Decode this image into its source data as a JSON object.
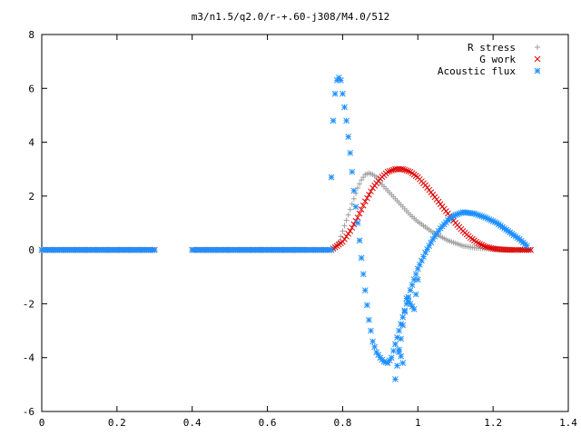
{
  "chart_data": {
    "type": "scatter",
    "title": "m3/n1.5/q2.0/r-+.60-j308/M4.0/512",
    "xlabel": "",
    "ylabel": "",
    "xlim": [
      0,
      1.4
    ],
    "ylim": [
      -6,
      8
    ],
    "x_ticks": [
      "0",
      "0.2",
      "0.4",
      "0.6",
      "0.8",
      "1",
      "1.2",
      "1.4"
    ],
    "y_ticks": [
      "-6",
      "-4",
      "-2",
      "0",
      "2",
      "4",
      "6",
      "8"
    ],
    "grid": false,
    "legend_position": "top-right",
    "series": [
      {
        "name": "R stress",
        "marker": "+",
        "color": "#a0a0a0",
        "points": [
          [
            0.0,
            0.0
          ],
          [
            0.1,
            0.0
          ],
          [
            0.2,
            0.0
          ],
          [
            0.3,
            0.0
          ],
          [
            0.4,
            0.0
          ],
          [
            0.5,
            0.0
          ],
          [
            0.6,
            0.0
          ],
          [
            0.7,
            0.0
          ],
          [
            0.77,
            0.0
          ],
          [
            0.78,
            0.1
          ],
          [
            0.79,
            0.3
          ],
          [
            0.8,
            0.7
          ],
          [
            0.81,
            1.1
          ],
          [
            0.82,
            1.5
          ],
          [
            0.83,
            1.9
          ],
          [
            0.84,
            2.3
          ],
          [
            0.85,
            2.6
          ],
          [
            0.86,
            2.8
          ],
          [
            0.87,
            2.85
          ],
          [
            0.88,
            2.8
          ],
          [
            0.89,
            2.7
          ],
          [
            0.9,
            2.5
          ],
          [
            0.92,
            2.2
          ],
          [
            0.94,
            1.9
          ],
          [
            0.96,
            1.6
          ],
          [
            0.98,
            1.3
          ],
          [
            1.0,
            1.05
          ],
          [
            1.02,
            0.85
          ],
          [
            1.04,
            0.65
          ],
          [
            1.06,
            0.5
          ],
          [
            1.08,
            0.35
          ],
          [
            1.1,
            0.25
          ],
          [
            1.12,
            0.15
          ],
          [
            1.15,
            0.08
          ],
          [
            1.2,
            0.02
          ],
          [
            1.25,
            0.0
          ],
          [
            1.3,
            0.0
          ]
        ]
      },
      {
        "name": "G work",
        "marker": "x",
        "color": "#e00000",
        "points": [
          [
            0.0,
            0.0
          ],
          [
            0.1,
            0.0
          ],
          [
            0.2,
            0.0
          ],
          [
            0.3,
            0.0
          ],
          [
            0.4,
            0.0
          ],
          [
            0.5,
            0.0
          ],
          [
            0.6,
            0.0
          ],
          [
            0.7,
            0.0
          ],
          [
            0.77,
            0.0
          ],
          [
            0.78,
            0.1
          ],
          [
            0.8,
            0.3
          ],
          [
            0.82,
            0.7
          ],
          [
            0.84,
            1.2
          ],
          [
            0.86,
            1.8
          ],
          [
            0.88,
            2.3
          ],
          [
            0.9,
            2.65
          ],
          [
            0.92,
            2.9
          ],
          [
            0.94,
            3.0
          ],
          [
            0.96,
            3.0
          ],
          [
            0.98,
            2.9
          ],
          [
            1.0,
            2.7
          ],
          [
            1.02,
            2.4
          ],
          [
            1.04,
            2.05
          ],
          [
            1.06,
            1.7
          ],
          [
            1.08,
            1.35
          ],
          [
            1.1,
            1.0
          ],
          [
            1.12,
            0.7
          ],
          [
            1.14,
            0.45
          ],
          [
            1.16,
            0.25
          ],
          [
            1.18,
            0.12
          ],
          [
            1.2,
            0.05
          ],
          [
            1.22,
            0.02
          ],
          [
            1.25,
            0.0
          ],
          [
            1.3,
            0.0
          ]
        ]
      },
      {
        "name": "Acoustic flux",
        "marker": "*",
        "color": "#1e90ff",
        "points": [
          [
            0.0,
            0.0
          ],
          [
            0.1,
            0.0
          ],
          [
            0.2,
            0.0
          ],
          [
            0.3,
            0.0
          ],
          [
            0.4,
            0.0
          ],
          [
            0.5,
            0.0
          ],
          [
            0.6,
            0.0
          ],
          [
            0.7,
            0.0
          ],
          [
            0.77,
            0.0
          ],
          [
            0.77,
            2.7
          ],
          [
            0.775,
            4.8
          ],
          [
            0.78,
            5.8
          ],
          [
            0.785,
            6.3
          ],
          [
            0.79,
            6.4
          ],
          [
            0.795,
            6.3
          ],
          [
            0.8,
            5.8
          ],
          [
            0.81,
            4.8
          ],
          [
            0.82,
            3.6
          ],
          [
            0.83,
            2.2
          ],
          [
            0.84,
            1.0
          ],
          [
            0.85,
            -0.3
          ],
          [
            0.86,
            -1.5
          ],
          [
            0.87,
            -2.6
          ],
          [
            0.88,
            -3.4
          ],
          [
            0.89,
            -3.8
          ],
          [
            0.9,
            -4.0
          ],
          [
            0.91,
            -4.15
          ],
          [
            0.92,
            -4.2
          ],
          [
            0.93,
            -4.0
          ],
          [
            0.94,
            -3.5
          ],
          [
            0.95,
            -3.0
          ],
          [
            0.96,
            -2.5
          ],
          [
            0.97,
            -2.0
          ],
          [
            0.98,
            -1.5
          ],
          [
            1.0,
            -0.7
          ],
          [
            1.02,
            -0.1
          ],
          [
            1.04,
            0.4
          ],
          [
            1.06,
            0.8
          ],
          [
            1.08,
            1.1
          ],
          [
            1.1,
            1.3
          ],
          [
            1.12,
            1.4
          ],
          [
            1.15,
            1.35
          ],
          [
            1.18,
            1.2
          ],
          [
            1.21,
            1.0
          ],
          [
            1.24,
            0.7
          ],
          [
            1.27,
            0.4
          ],
          [
            1.29,
            0.15
          ],
          [
            0.94,
            -4.8
          ],
          [
            0.96,
            -2.8
          ],
          [
            0.97,
            -1.8
          ],
          [
            0.99,
            -2.2
          ],
          [
            1.0,
            -1.1
          ],
          [
            0.95,
            -3.7
          ],
          [
            0.96,
            -4.2
          ]
        ]
      }
    ]
  }
}
